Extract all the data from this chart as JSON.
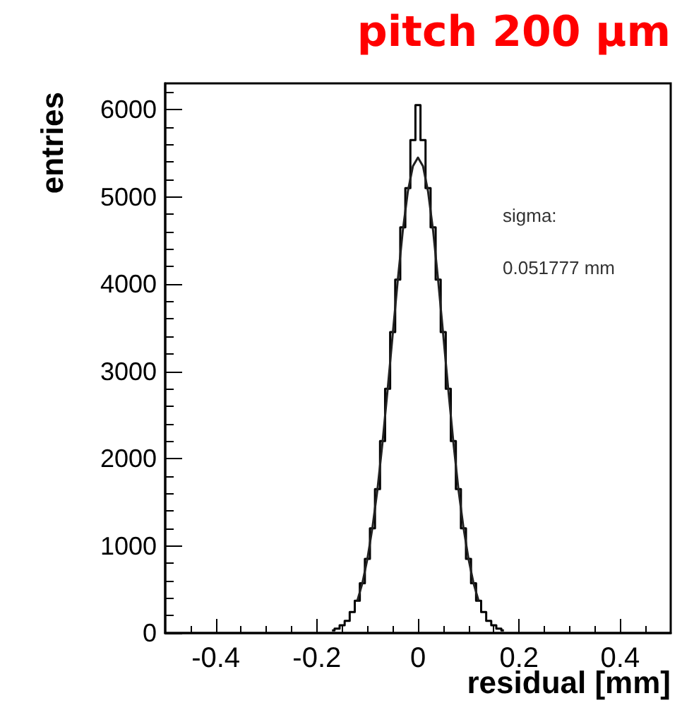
{
  "chart_data": {
    "type": "step",
    "title": "pitch 200 µm",
    "xlabel": "residual [mm]",
    "ylabel": "entries",
    "annotations": [
      "sigma:",
      "0.051777 mm"
    ],
    "x": [
      -0.17,
      -0.16,
      -0.15,
      -0.14,
      -0.13,
      -0.12,
      -0.11,
      -0.1,
      -0.09,
      -0.08,
      -0.07,
      -0.06,
      -0.05,
      -0.04,
      -0.03,
      -0.02,
      -0.01,
      0,
      0.01,
      0.02,
      0.03,
      0.04,
      0.05,
      0.06,
      0.07,
      0.08,
      0.09,
      0.1,
      0.11,
      0.12,
      0.13,
      0.14,
      0.15,
      0.16,
      0.17
    ],
    "values": [
      30,
      50,
      90,
      140,
      240,
      370,
      570,
      850,
      1200,
      1650,
      2200,
      2800,
      3450,
      4050,
      4650,
      5100,
      5650,
      6050,
      5650,
      5100,
      4650,
      4050,
      3450,
      2800,
      2200,
      1650,
      1200,
      850,
      570,
      370,
      240,
      140,
      90,
      50,
      30
    ],
    "color": "#000000",
    "series": [
      {
        "type": "line",
        "color": "#202020",
        "x": [
          -0.12,
          -0.11,
          -0.1,
          -0.09,
          -0.08,
          -0.07,
          -0.06,
          -0.05,
          -0.04,
          -0.03,
          -0.02,
          -0.01,
          0,
          0.01,
          0.02,
          0.03,
          0.04,
          0.05,
          0.06,
          0.07,
          0.08,
          0.09,
          0.1,
          0.11,
          0.12
        ],
        "values": [
          370,
          570,
          850,
          1210,
          1650,
          2190,
          2790,
          3420,
          4040,
          4610,
          5060,
          5350,
          5450,
          5350,
          5060,
          4610,
          4040,
          3420,
          2790,
          2190,
          1650,
          1210,
          850,
          570,
          370
        ]
      }
    ],
    "xlim": [
      -0.5,
      0.5
    ],
    "xticks": [
      -0.4,
      -0.2,
      0,
      0.2,
      0.4
    ],
    "ylim": [
      0,
      6300
    ],
    "yticks": [
      0,
      1000,
      2000,
      3000,
      4000,
      5000,
      6000
    ],
    "grid": false,
    "marker": "none",
    "line_style": "solid"
  }
}
